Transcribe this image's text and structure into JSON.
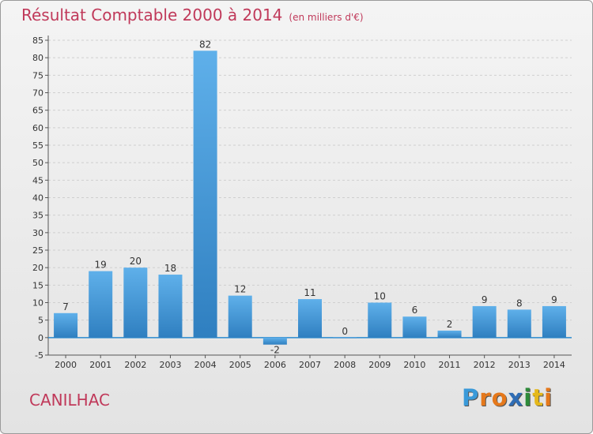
{
  "header": {
    "title": "Résultat Comptable 2000 à 2014",
    "subtitle": "(en milliers d'€)"
  },
  "commune": "CANILHAC",
  "logo": {
    "text": "Proxiti",
    "letters": [
      "P",
      "r",
      "o",
      "x",
      "i",
      "t",
      "i"
    ],
    "letter_colors": [
      "#3a9ad9",
      "#e5781b",
      "#e5781b",
      "#2f6db5",
      "#2e8b3a",
      "#e5b81b",
      "#e5781b"
    ]
  },
  "colors": {
    "title": "#c0395a",
    "bar_top": "#5fb0ea",
    "bar_bottom": "#2f7fc0",
    "zero_line": "#2a8ad0"
  },
  "chart_data": {
    "type": "bar",
    "title": "Résultat Comptable 2000 à 2014",
    "ylabel": "en milliers d'€",
    "xlabel": "",
    "categories": [
      "2000",
      "2001",
      "2002",
      "2003",
      "2004",
      "2005",
      "2006",
      "2007",
      "2008",
      "2009",
      "2010",
      "2011",
      "2012",
      "2013",
      "2014"
    ],
    "values": [
      7,
      19,
      20,
      18,
      82,
      12,
      -2,
      11,
      0,
      10,
      6,
      2,
      9,
      8,
      9
    ],
    "ylim": [
      -5,
      85
    ],
    "yticks": [
      -5,
      0,
      5,
      10,
      15,
      20,
      25,
      30,
      35,
      40,
      45,
      50,
      55,
      60,
      65,
      70,
      75,
      80,
      85
    ],
    "grid": true
  }
}
